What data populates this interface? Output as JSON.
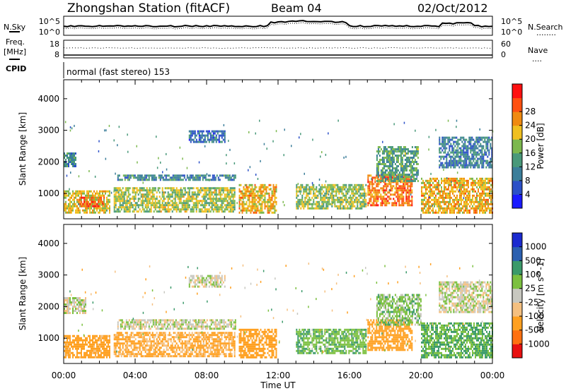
{
  "header": {
    "station": "Zhongshan Station (fitACF)",
    "beam": "Beam 04",
    "date": "02/Oct/2012"
  },
  "noise_panel": {
    "left_label": "N.Sky",
    "left_ticks": [
      "10^5",
      "10^0"
    ],
    "right_ticks": [
      "10^5",
      "10^0"
    ],
    "right_label": "N.Search",
    "right_legend": "........"
  },
  "freq_panel": {
    "left_label_1": "Freq.",
    "left_label_2": "[MHz]",
    "left_ticks": [
      "18",
      "8"
    ],
    "right_ticks": [
      "60",
      "0"
    ],
    "right_label": "Nave",
    "right_legend": "...."
  },
  "cpid": {
    "label": "CPID",
    "text": "normal (fast stereo) 153"
  },
  "time_axis": {
    "label": "Time UT",
    "ticks": [
      "00:00",
      "04:00",
      "08:00",
      "12:00",
      "16:00",
      "20:00",
      "00:00"
    ]
  },
  "colors": {
    "power": [
      "#1a1aff",
      "#2b50c8",
      "#3b7e9a",
      "#49997a",
      "#7cb84e",
      "#f0c020",
      "#f08a10",
      "#ff5010",
      "#ff1010"
    ],
    "velocity": [
      "#e81010",
      "#ff7010",
      "#ffa020",
      "#f5c080",
      "#c8c8c0",
      "#7cc040",
      "#3b9a6a",
      "#2b60b0",
      "#1a2ad0"
    ]
  },
  "chart_data": [
    {
      "type": "heatmap",
      "title": "Power",
      "ylabel": "Slant Range [km]",
      "xlabel": "",
      "ylim": [
        200,
        4600
      ],
      "y_ticks": [
        "1000",
        "2000",
        "3000",
        "4000"
      ],
      "colorbar_label": "Power [dB]",
      "colorbar_ticks": [
        "4",
        "8",
        "12",
        "16",
        "20",
        "24",
        "28"
      ],
      "x_ticks": [
        "00:00",
        "04:00",
        "08:00",
        "12:00",
        "16:00",
        "20:00",
        "00:00"
      ],
      "regions": [
        {
          "t0": 0.0,
          "t1": 0.7,
          "r0": 1850,
          "r1": 2300,
          "value": 9
        },
        {
          "t0": 0.0,
          "t1": 2.6,
          "r0": 400,
          "r1": 1100,
          "value": 18
        },
        {
          "t0": 0.8,
          "t1": 2.3,
          "r0": 600,
          "r1": 900,
          "value": 26
        },
        {
          "t0": 2.8,
          "t1": 9.6,
          "r0": 400,
          "r1": 1200,
          "value": 16
        },
        {
          "t0": 3.0,
          "t1": 9.6,
          "r0": 1400,
          "r1": 1600,
          "value": 9
        },
        {
          "t0": 7.0,
          "t1": 9.0,
          "r0": 2600,
          "r1": 3000,
          "value": 6
        },
        {
          "t0": 9.8,
          "t1": 11.9,
          "r0": 400,
          "r1": 1300,
          "value": 20
        },
        {
          "t0": 13.0,
          "t1": 16.9,
          "r0": 500,
          "r1": 1300,
          "value": 15
        },
        {
          "t0": 17.0,
          "t1": 19.5,
          "r0": 600,
          "r1": 1600,
          "value": 24
        },
        {
          "t0": 17.5,
          "t1": 19.8,
          "r0": 1400,
          "r1": 2500,
          "value": 12
        },
        {
          "t0": 20.0,
          "t1": 24.0,
          "r0": 400,
          "r1": 1500,
          "value": 20
        },
        {
          "t0": 21.0,
          "t1": 24.0,
          "r0": 1800,
          "r1": 2800,
          "value": 8
        }
      ]
    },
    {
      "type": "heatmap",
      "title": "Velocity",
      "ylabel": "Slant Range [km]",
      "xlabel": "Time UT",
      "ylim": [
        200,
        4600
      ],
      "y_ticks": [
        "1000",
        "2000",
        "3000",
        "4000"
      ],
      "colorbar_label": "Velocity [m s^-1]",
      "colorbar_ticks": [
        "1000",
        "500",
        "100",
        "25",
        "-25",
        "-100",
        "-500",
        "-1000"
      ],
      "x_ticks": [
        "00:00",
        "04:00",
        "08:00",
        "12:00",
        "16:00",
        "20:00",
        "00:00"
      ],
      "regions": [
        {
          "t0": 0.0,
          "t1": 1.2,
          "r0": 1800,
          "r1": 2300,
          "value": 0
        },
        {
          "t0": 0.0,
          "t1": 2.6,
          "r0": 400,
          "r1": 1100,
          "value": -150
        },
        {
          "t0": 2.8,
          "t1": 9.6,
          "r0": 400,
          "r1": 1200,
          "value": -120
        },
        {
          "t0": 3.0,
          "t1": 9.6,
          "r0": 1300,
          "r1": 1600,
          "value": 0
        },
        {
          "t0": 7.0,
          "t1": 9.0,
          "r0": 2600,
          "r1": 3000,
          "value": 0
        },
        {
          "t0": 9.8,
          "t1": 11.9,
          "r0": 400,
          "r1": 1300,
          "value": -200
        },
        {
          "t0": 13.0,
          "t1": 16.9,
          "r0": 500,
          "r1": 1300,
          "value": 80
        },
        {
          "t0": 17.0,
          "t1": 19.5,
          "r0": 600,
          "r1": 1600,
          "value": -300
        },
        {
          "t0": 17.5,
          "t1": 20.0,
          "r0": 1400,
          "r1": 2400,
          "value": 60
        },
        {
          "t0": 20.0,
          "t1": 24.0,
          "r0": 400,
          "r1": 1500,
          "value": 100
        },
        {
          "t0": 21.0,
          "t1": 24.0,
          "r0": 1800,
          "r1": 2800,
          "value": 0
        }
      ]
    }
  ]
}
